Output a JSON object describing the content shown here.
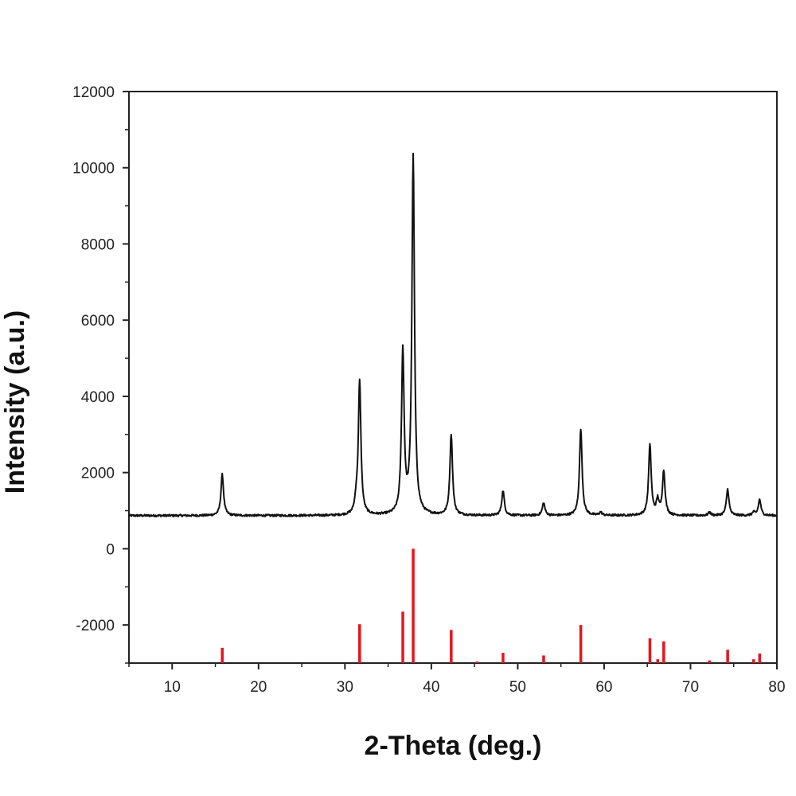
{
  "chart_data": {
    "type": "line",
    "title": "",
    "xlabel": "2-Theta (deg.)",
    "ylabel": "Intensity (a.u.)",
    "xlim": [
      5,
      80
    ],
    "ylim": [
      -3000,
      12000
    ],
    "grid": false,
    "legend": "none",
    "x_ticks": [
      10,
      20,
      30,
      40,
      50,
      60,
      70,
      80
    ],
    "y_ticks": [
      -2000,
      0,
      2000,
      4000,
      6000,
      8000,
      10000,
      12000
    ],
    "colors": {
      "pattern": "#111111",
      "reference": "#e8141b",
      "axis": "#222222"
    },
    "baseline": 870,
    "peak_width": 0.18,
    "series": [
      {
        "type": "line",
        "color": "#111111",
        "peaks": [
          {
            "x": 15.8,
            "y": 1950
          },
          {
            "x": 31.3,
            "y": 1150
          },
          {
            "x": 31.7,
            "y": 4380
          },
          {
            "x": 36.7,
            "y": 5130
          },
          {
            "x": 37.9,
            "y": 10250
          },
          {
            "x": 42.3,
            "y": 3000
          },
          {
            "x": 48.3,
            "y": 1520
          },
          {
            "x": 53.0,
            "y": 1200
          },
          {
            "x": 57.3,
            "y": 3150
          },
          {
            "x": 59.6,
            "y": 950
          },
          {
            "x": 65.3,
            "y": 2710
          },
          {
            "x": 66.2,
            "y": 1250
          },
          {
            "x": 66.9,
            "y": 2030
          },
          {
            "x": 72.2,
            "y": 950
          },
          {
            "x": 74.3,
            "y": 1560
          },
          {
            "x": 77.3,
            "y": 950
          },
          {
            "x": 78.0,
            "y": 1290
          }
        ]
      },
      {
        "type": "stick",
        "color": "#e8141b",
        "base": -3000,
        "sticks": [
          {
            "x": 15.8,
            "y": -2600
          },
          {
            "x": 31.7,
            "y": -1980
          },
          {
            "x": 36.7,
            "y": -1650
          },
          {
            "x": 37.9,
            "y": 0
          },
          {
            "x": 42.3,
            "y": -2130
          },
          {
            "x": 45.3,
            "y": -2960
          },
          {
            "x": 48.3,
            "y": -2730
          },
          {
            "x": 53.0,
            "y": -2800
          },
          {
            "x": 57.3,
            "y": -2000
          },
          {
            "x": 65.3,
            "y": -2350
          },
          {
            "x": 66.2,
            "y": -2900
          },
          {
            "x": 66.9,
            "y": -2430
          },
          {
            "x": 72.2,
            "y": -2930
          },
          {
            "x": 74.3,
            "y": -2650
          },
          {
            "x": 77.3,
            "y": -2900
          },
          {
            "x": 78.0,
            "y": -2750
          }
        ]
      }
    ]
  }
}
